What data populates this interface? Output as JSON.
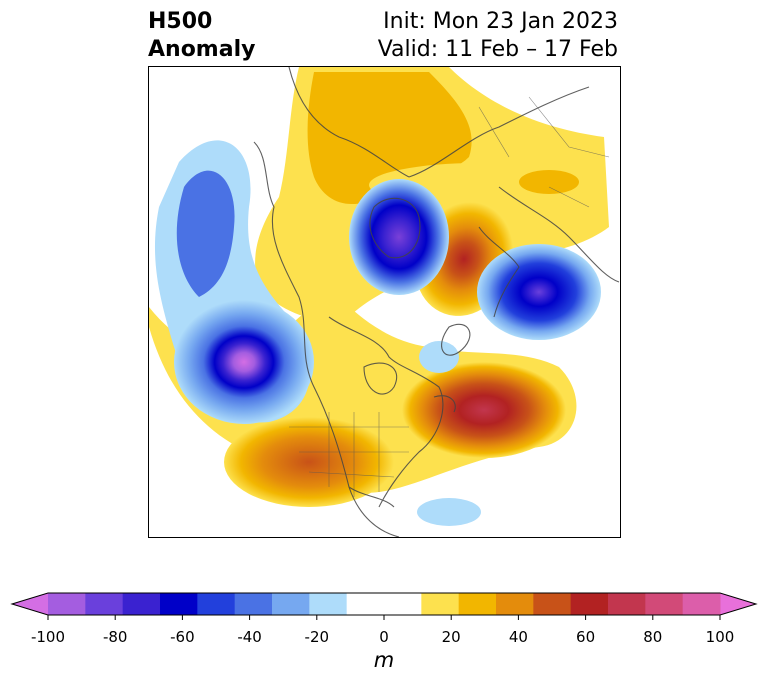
{
  "title": {
    "left_line1": "H500",
    "left_line2": "Anomaly",
    "right_line1": "Init: Mon 23 Jan 2023",
    "right_line2": "Valid: 11 Feb – 17 Feb"
  },
  "colorbar": {
    "unit": "m",
    "ticks": [
      "-100",
      "-80",
      "-60",
      "-40",
      "-20",
      "0",
      "20",
      "40",
      "60",
      "80",
      "100"
    ],
    "colors": [
      "#a45de0",
      "#6a40dc",
      "#3a22d0",
      "#0000c8",
      "#2240dc",
      "#4a72e4",
      "#76a8f0",
      "#aedcfa",
      "#ffffff",
      "#ffffff",
      "#fde14e",
      "#f2b600",
      "#e48c0c",
      "#c85218",
      "#b22222",
      "#c2364e",
      "#d24a78",
      "#dc5eaa"
    ],
    "extend_low_color": "#d46ee4",
    "extend_high_color": "#e870da"
  }
}
